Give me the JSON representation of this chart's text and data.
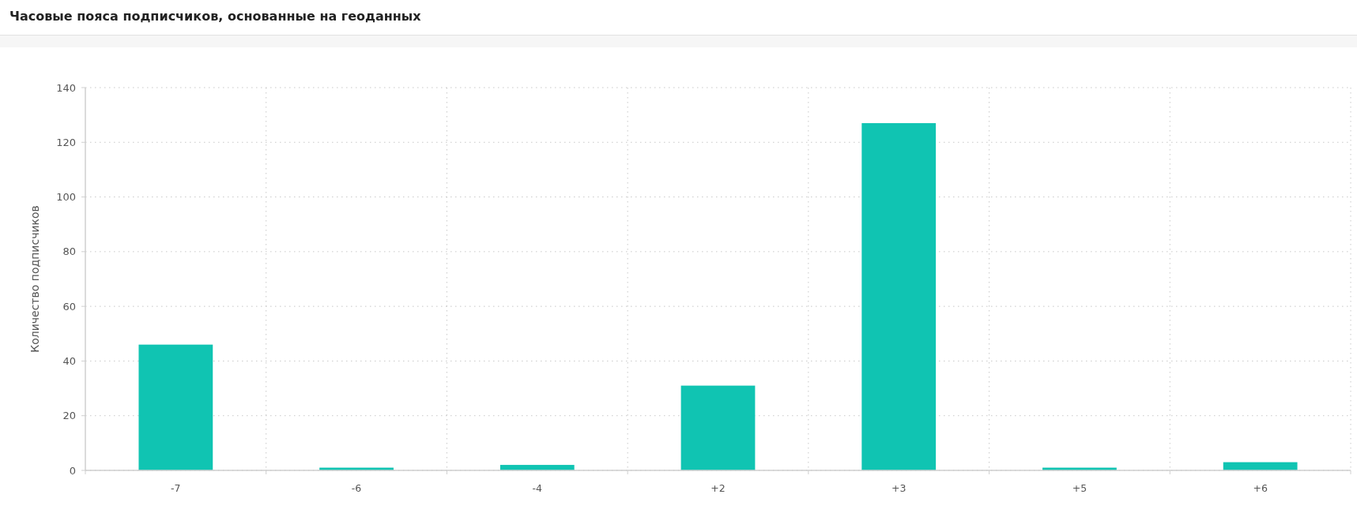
{
  "chart_data": {
    "type": "bar",
    "title": "Часовые пояса подписчиков, основанные на геоданных",
    "ylabel": "Количество подписчиков",
    "categories": [
      "-7",
      "-6",
      "-4",
      "+2",
      "+3",
      "+5",
      "+6"
    ],
    "values": [
      46,
      1,
      2,
      31,
      127,
      1,
      3
    ],
    "color": "#10c4b2",
    "ylim": [
      0,
      140
    ],
    "yticks": [
      0,
      20,
      40,
      60,
      80,
      100,
      120,
      140
    ],
    "grid": true
  }
}
